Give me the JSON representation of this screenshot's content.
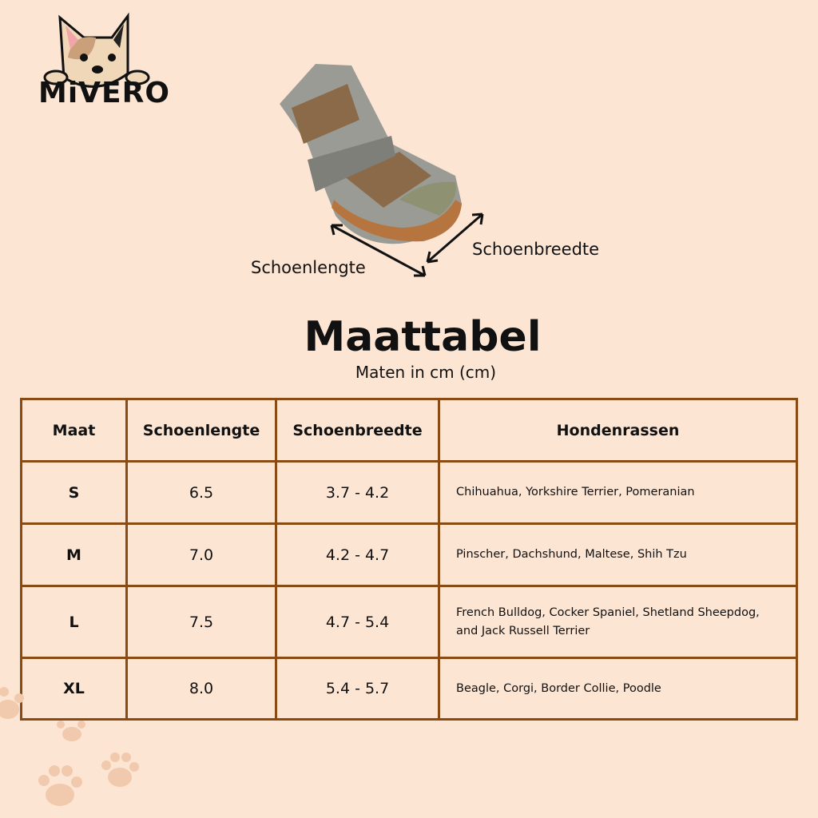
{
  "brand": {
    "name": "MiVERO"
  },
  "diagram": {
    "length_label": "Schoenlengte",
    "width_label": "Schoenbreedte"
  },
  "title": "Maattabel",
  "subtitle": "Maten in cm (cm)",
  "table": {
    "headers": [
      "Maat",
      "Schoenlengte",
      "Schoenbreedte",
      "Hondenrassen"
    ],
    "rows": [
      {
        "size": "S",
        "length": "6.5",
        "width": "3.7 - 4.2",
        "breeds": "Chihuahua, Yorkshire Terrier, Pomeranian"
      },
      {
        "size": "M",
        "length": "7.0",
        "width": "4.2 - 4.7",
        "breeds": "Pinscher, Dachshund, Maltese, Shih Tzu"
      },
      {
        "size": "L",
        "length": "7.5",
        "width": "4.7 - 5.4",
        "breeds": "French Bulldog, Cocker Spaniel, Shetland Sheepdog, and Jack Russell Terrier"
      },
      {
        "size": "XL",
        "length": "8.0",
        "width": "5.4 - 5.7",
        "breeds": "Beagle, Corgi, Border Collie, Poodle"
      }
    ]
  },
  "colors": {
    "background": "#fde5d4",
    "border": "#8a4a14"
  }
}
